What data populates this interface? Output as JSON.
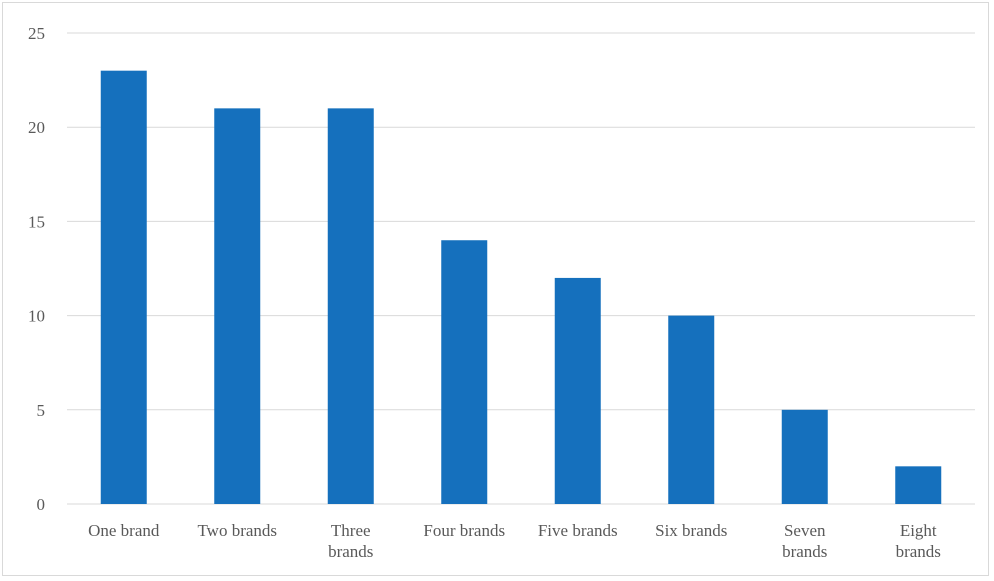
{
  "chart_data": {
    "type": "bar",
    "categories": [
      [
        "One brand"
      ],
      [
        "Two brands"
      ],
      [
        "Three",
        "brands"
      ],
      [
        "Four brands"
      ],
      [
        "Five brands"
      ],
      [
        "Six brands"
      ],
      [
        "Seven",
        "brands"
      ],
      [
        "Eight",
        "brands"
      ]
    ],
    "values": [
      23,
      21,
      21,
      14,
      12,
      10,
      5,
      2
    ],
    "ylim": [
      0,
      25
    ],
    "yticks": [
      0,
      5,
      10,
      15,
      20,
      25
    ],
    "title": "",
    "xlabel": "",
    "ylabel": "",
    "grid": true,
    "legend": "none",
    "colors": {
      "bar": "#1570BD",
      "grid": "#d9d9d9",
      "text": "#595959"
    }
  }
}
